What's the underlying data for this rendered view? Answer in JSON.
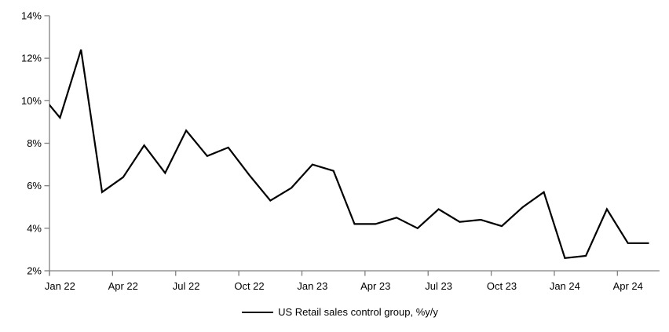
{
  "chart_data": {
    "type": "line",
    "title": "",
    "legend": "US Retail sales control group, %y/y",
    "categories": [
      "Dec 21",
      "Jan 22",
      "Feb 22",
      "Mar 22",
      "Apr 22",
      "May 22",
      "Jun 22",
      "Jul 22",
      "Aug 22",
      "Sep 22",
      "Oct 22",
      "Nov 22",
      "Dec 22",
      "Jan 23",
      "Feb 23",
      "Mar 23",
      "Apr 23",
      "May 23",
      "Jun 23",
      "Jul 23",
      "Aug 23",
      "Sep 23",
      "Oct 23",
      "Nov 23",
      "Dec 23",
      "Jan 24",
      "Feb 24",
      "Mar 24",
      "Apr 24",
      "May 24"
    ],
    "values": [
      10.4,
      9.2,
      12.4,
      5.7,
      6.4,
      7.9,
      6.6,
      8.6,
      7.4,
      7.8,
      6.5,
      5.3,
      5.9,
      7.0,
      6.7,
      4.2,
      4.2,
      4.5,
      4.0,
      4.9,
      4.3,
      4.4,
      4.1,
      5.0,
      5.7,
      2.6,
      2.7,
      4.9,
      3.3,
      3.3
    ],
    "series": [
      {
        "name": "US Retail sales control group, %y/y"
      }
    ],
    "xlabel": "",
    "ylabel": "",
    "ylim": [
      2,
      14
    ],
    "y_tick_step": 2,
    "y_tick_labels": [
      "2%",
      "4%",
      "6%",
      "8%",
      "10%",
      "12%",
      "14%"
    ],
    "x_tick_labels": [
      "Jan 22",
      "Apr 22",
      "Jul 22",
      "Oct 22",
      "Jan 23",
      "Apr 23",
      "Jul 23",
      "Oct 23",
      "Jan 24",
      "Apr 24"
    ],
    "x_tick_interval_months": 3,
    "first_point_clipped_at_axis": true,
    "grid": false,
    "legend_position": "bottom-center",
    "line_color": "#000000",
    "axis_color": "#808080",
    "background": "#ffffff"
  }
}
